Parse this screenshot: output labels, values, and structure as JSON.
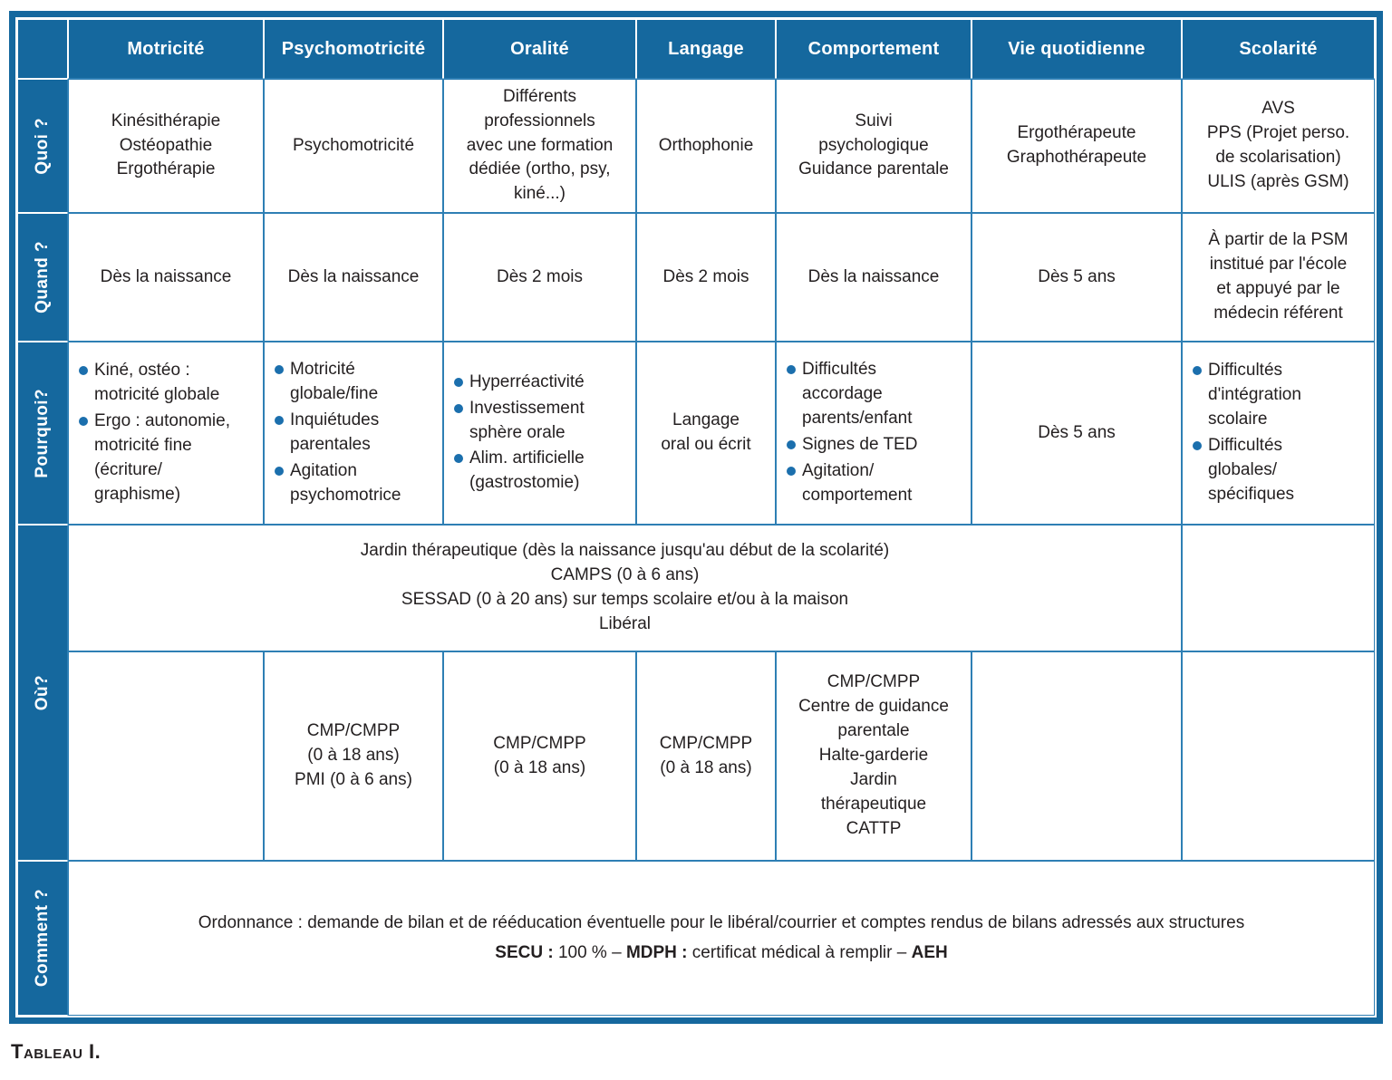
{
  "colors": {
    "header_blue": "#15689e",
    "grid_blue": "#2e7fb4",
    "bullet_blue": "#1b6fad",
    "text_color": "#231f20"
  },
  "caption": "Tableau I.",
  "table": {
    "columns": [
      "Motricité",
      "Psychomotricité",
      "Oralité",
      "Langage",
      "Comportement",
      "Vie quotidienne",
      "Scolarité"
    ],
    "rows": {
      "quoi": {
        "label": "Quoi ?",
        "cells": [
          "Kinésithérapie\nOstéopathie\nErgothérapie",
          "Psychomotricité",
          "Différents\nprofessionnels\navec une formation\ndédiée (ortho, psy,\nkiné...)",
          "Orthophonie",
          "Suivi\npsychologique\nGuidance parentale",
          "Ergothérapeute\nGraphothérapeute",
          "AVS\nPPS (Projet perso.\nde scolarisation)\nULIS (après GSM)"
        ]
      },
      "quand": {
        "label": "Quand ?",
        "cells": [
          "Dès la naissance",
          "Dès la naissance",
          "Dès 2 mois",
          "Dès 2 mois",
          "Dès la naissance",
          "Dès 5 ans",
          "À partir de la PSM\ninstitué par l'école\net appuyé par le\nmédecin référent"
        ]
      },
      "pourquoi": {
        "label": "Pourquoi?",
        "cells": [
          {
            "bullets": [
              "Kiné, ostéo :\nmotricité globale",
              "Ergo : autonomie,\nmotricité fine\n(écriture/\ngraphisme)"
            ]
          },
          {
            "bullets": [
              "Motricité\nglobale/fine",
              "Inquiétudes\nparentales",
              "Agitation\npsychomotrice"
            ]
          },
          {
            "bullets": [
              "Hyperréactivité",
              "Investissement\nsphère orale",
              "Alim. artificielle\n(gastrostomie)"
            ]
          },
          {
            "text": "Langage\noral ou écrit"
          },
          {
            "bullets": [
              "Difficultés\naccordage\nparents/enfant",
              "Signes de TED",
              "Agitation/\ncomportement"
            ]
          },
          {
            "text": "Dès 5 ans"
          },
          {
            "bullets": [
              "Difficultés\nd'intégration\nscolaire",
              "Difficultés\nglobales/\nspécifiques"
            ]
          }
        ]
      },
      "ou": {
        "label": "Où?",
        "span_text": "Jardin thérapeutique (dès la naissance jusqu'au début de la scolarité)\nCAMPS (0 à 6 ans)\nSESSAD (0 à 20 ans) sur temps scolaire et/ou à la maison\nLibéral",
        "span_right_cell": "",
        "cells": [
          "",
          "CMP/CMPP\n(0 à 18 ans)\nPMI (0 à 6 ans)",
          "CMP/CMPP\n(0 à 18 ans)",
          "CMP/CMPP\n(0 à 18 ans)",
          "CMP/CMPP\nCentre de guidance\nparentale\nHalte-garderie\nJardin\nthérapeutique\nCATTP",
          "",
          ""
        ]
      },
      "comment": {
        "label": "Comment ?",
        "line1": "Ordonnance : demande de bilan et de rééducation éventuelle pour le libéral/courrier et comptes rendus de bilans adressés aux structures",
        "line2_segments": [
          {
            "text": "SECU :",
            "bold": true
          },
          {
            "text": " 100 % – ",
            "bold": false
          },
          {
            "text": "MDPH :",
            "bold": true
          },
          {
            "text": " certificat médical à remplir – ",
            "bold": false
          },
          {
            "text": "AEH",
            "bold": true
          }
        ]
      }
    }
  }
}
